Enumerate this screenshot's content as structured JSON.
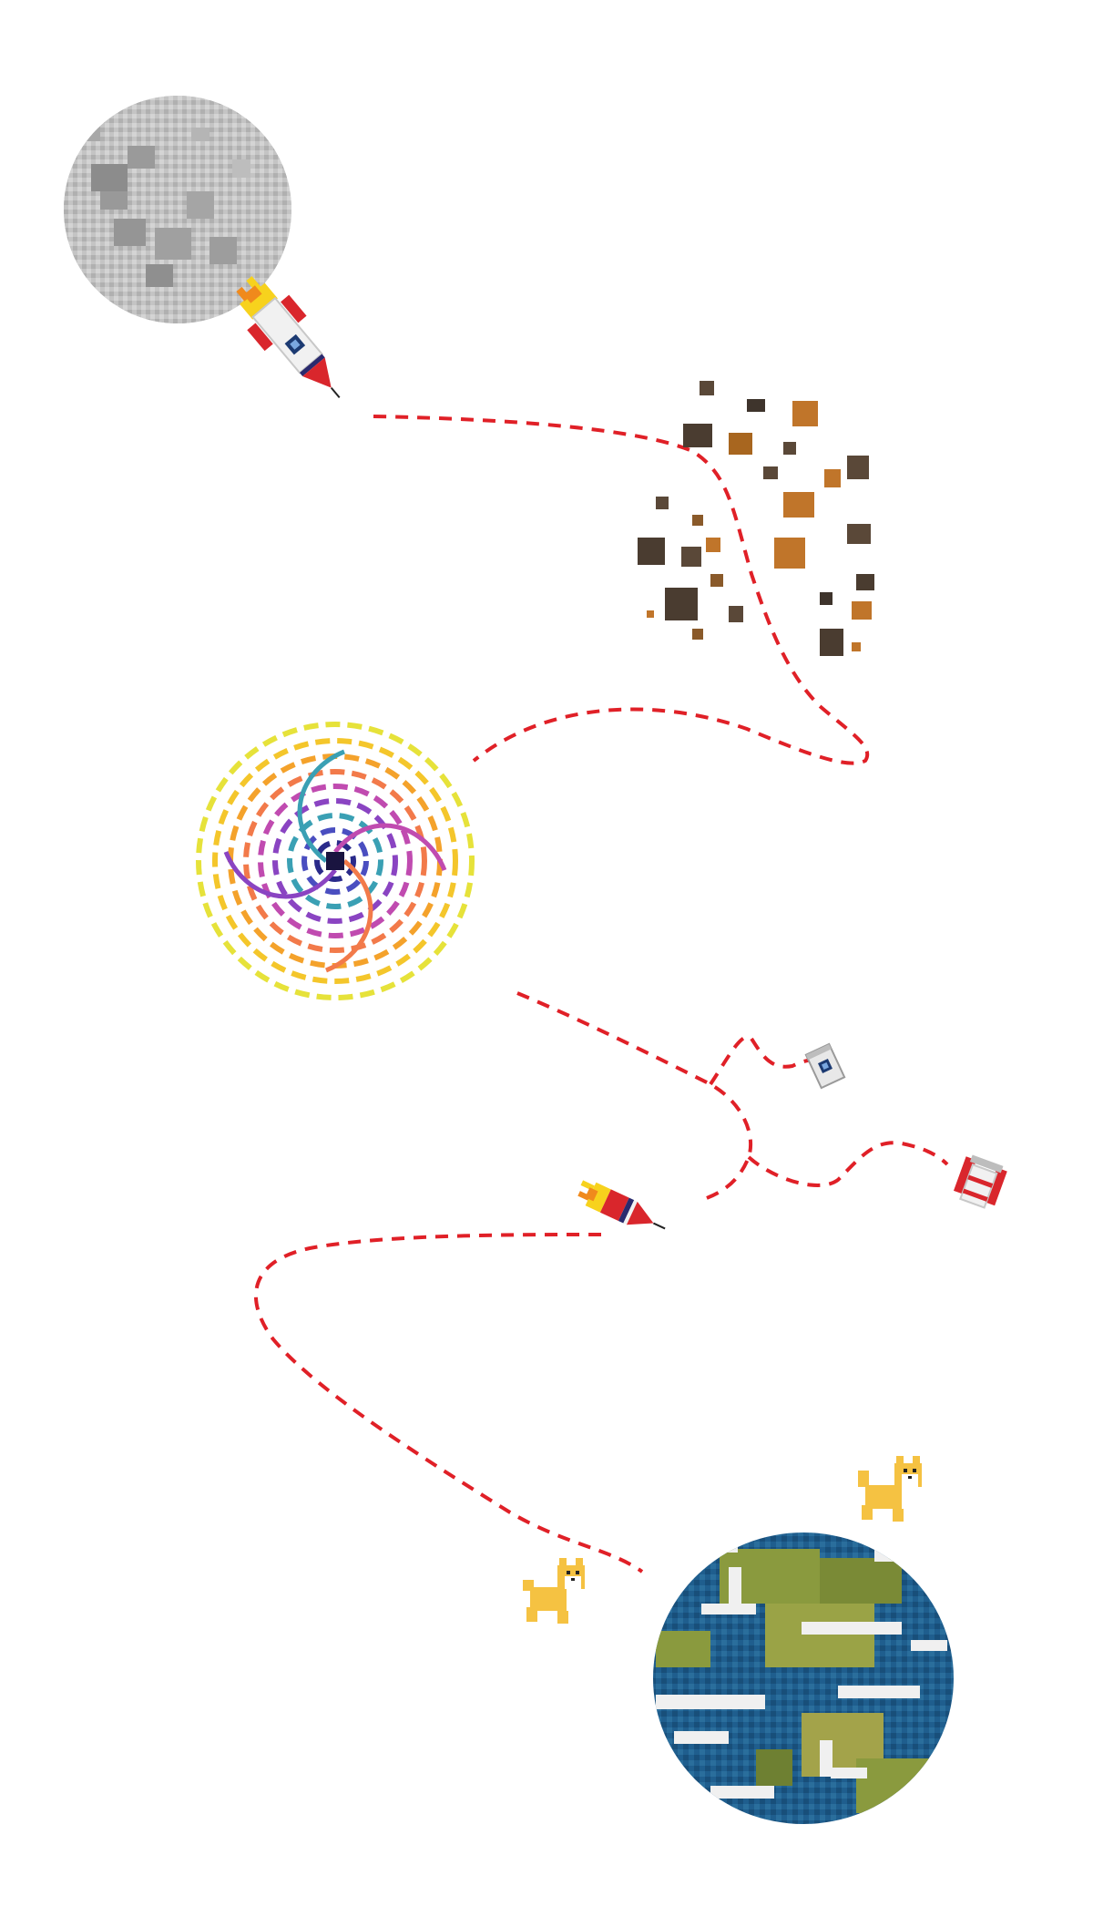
{
  "scene": {
    "background": "#ffffff",
    "objects": [
      {
        "kind": "moon",
        "icon": "moon-icon"
      },
      {
        "kind": "rocket",
        "icon": "rocket-icon",
        "state": "launching"
      },
      {
        "kind": "asteroid-field",
        "icon": "asteroid-field-icon"
      },
      {
        "kind": "black-hole",
        "icon": "wormhole-vortex-icon"
      },
      {
        "kind": "rocket-fuel-can",
        "icon": "fuel-canister-icon"
      },
      {
        "kind": "rocket-broken-stage",
        "icon": "rocket-fragment-icon"
      },
      {
        "kind": "rocket-nose",
        "icon": "rocket-nose-icon",
        "state": "thrusting"
      },
      {
        "kind": "dog",
        "icon": "shiba-dog-icon"
      },
      {
        "kind": "dog",
        "icon": "shiba-dog-icon"
      },
      {
        "kind": "earth",
        "icon": "earth-icon"
      }
    ]
  },
  "colors": {
    "trajectory": "#e02027",
    "moon_light": "#d8d8d8",
    "moon_dark": "#8c8c8c",
    "rocket_red": "#d9262c",
    "rocket_white": "#f1f1f1",
    "flame_yellow": "#f7d21d",
    "flame_orange": "#f08a1c",
    "asteroid_brown": "#5a4838",
    "asteroid_orange": "#c0752a",
    "earth_ocean": "#1f5e8e",
    "earth_land": "#8a9a3e",
    "earth_cloud": "#f0f0f0",
    "dog_fur": "#f5c242"
  }
}
